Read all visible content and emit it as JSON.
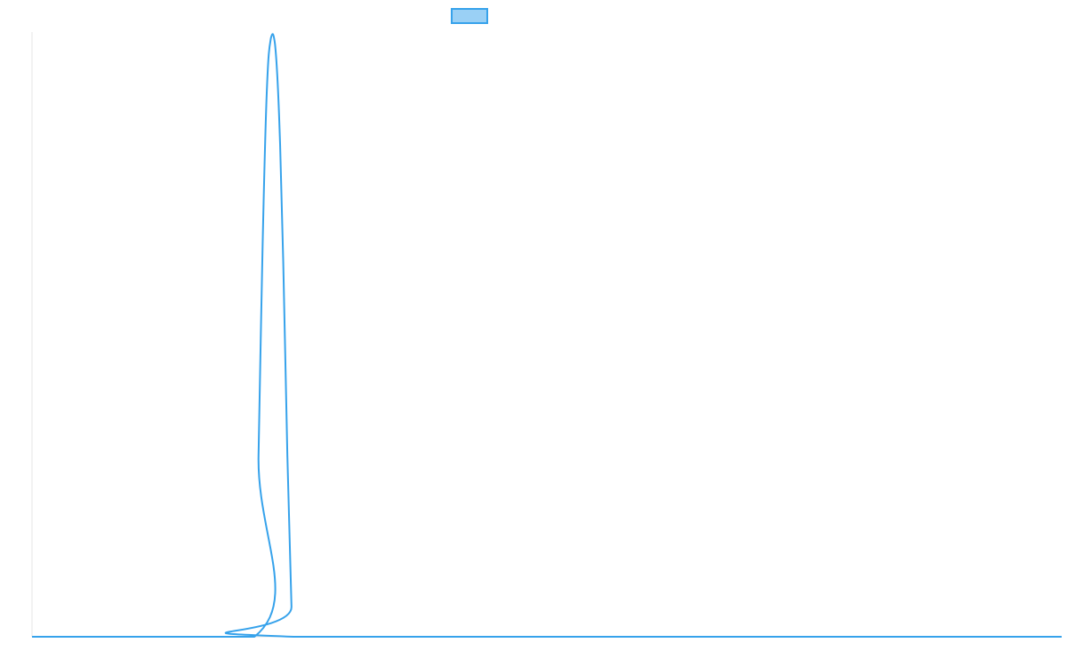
{
  "chart_data": {
    "type": "line",
    "title": "",
    "xlabel": "",
    "ylabel": "",
    "grid": false,
    "legend_position": "top-center",
    "x_range": [
      0,
      100
    ],
    "ylim": [
      0,
      1
    ],
    "series": [
      {
        "color": "#36a2eb",
        "fill": "#9ad0f5",
        "x": [
          0,
          21.6,
          22.0,
          22.4,
          22.8,
          23.2,
          23.6,
          24.0,
          24.4,
          24.8,
          25.2,
          25.5,
          100
        ],
        "values": [
          0,
          0,
          0.3,
          0.65,
          0.9,
          0.99,
          0.98,
          0.86,
          0.62,
          0.3,
          0.05,
          0,
          0
        ]
      }
    ]
  }
}
